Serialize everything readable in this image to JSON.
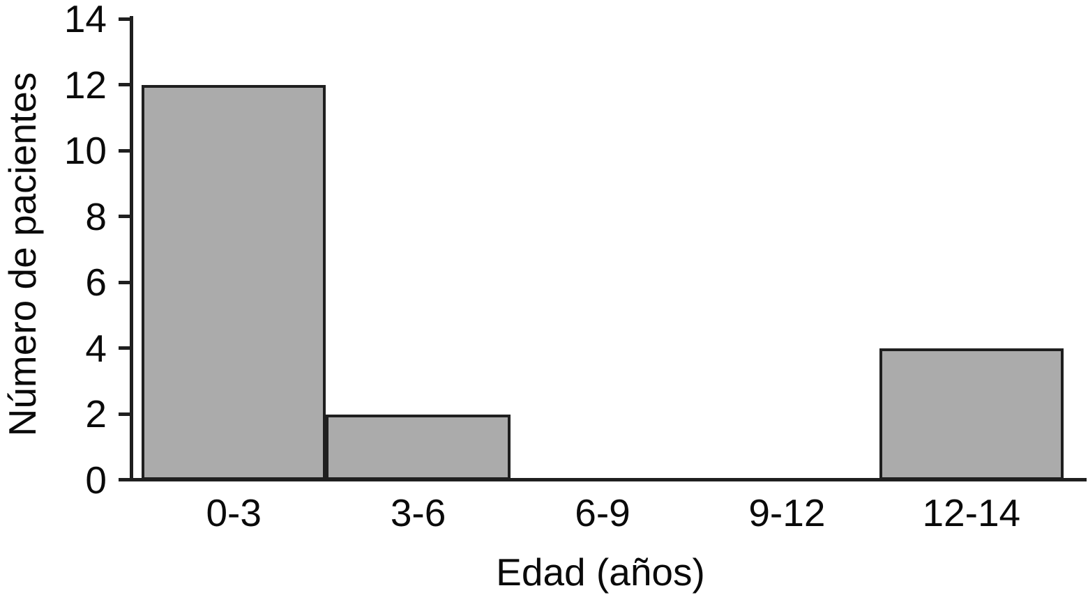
{
  "chart_data": {
    "type": "bar",
    "style": "histogram-adjacent-bars",
    "title": "",
    "categories": [
      "0-3",
      "3-6",
      "6-9",
      "9-12",
      "12-14"
    ],
    "values": [
      12,
      2,
      0,
      0,
      4
    ],
    "xlabel": "Edad (años)",
    "ylabel": "Número de pacientes",
    "ylim": [
      0,
      14
    ],
    "yticks": [
      0,
      2,
      4,
      6,
      8,
      10,
      12,
      14
    ],
    "grid": false,
    "legend": false,
    "colors": {
      "bar_fill": "#ababab",
      "bar_border": "#1f1f1f",
      "axis": "#1f1f1f",
      "text": "#0a0a0a",
      "background": "#ffffff"
    }
  }
}
